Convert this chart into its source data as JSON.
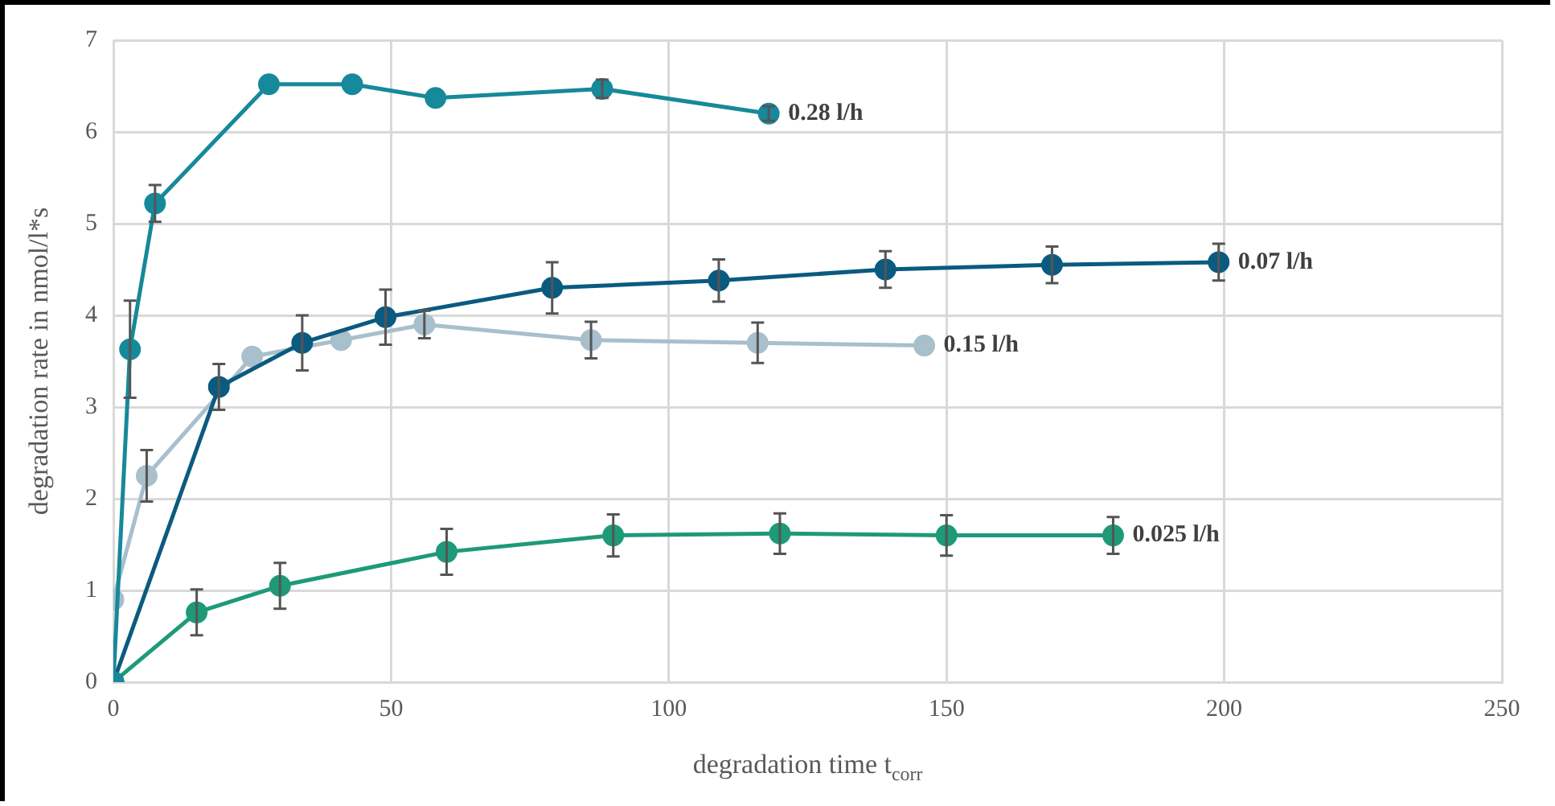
{
  "chart_data": {
    "type": "line",
    "xlabel": "degradation time t$_{corr}$",
    "ylabel": "degradation rate in nmol/l*s",
    "xlim": [
      0,
      250
    ],
    "xticks": [
      0,
      50,
      100,
      150,
      200,
      250
    ],
    "ylim": [
      0,
      7
    ],
    "yticks": [
      0,
      1,
      2,
      3,
      4,
      5,
      6,
      7
    ],
    "grid": true,
    "legend": false,
    "marker": "circle",
    "line_style": "solid",
    "series": [
      {
        "name": "0.28 l/h",
        "color": "#16899a",
        "x": [
          0,
          3,
          7.5,
          28,
          43,
          58,
          88,
          118
        ],
        "values": [
          0,
          3.63,
          5.22,
          6.52,
          6.52,
          6.37,
          6.47,
          6.2
        ],
        "errors": [
          null,
          0.53,
          0.2,
          null,
          null,
          null,
          0.1,
          0.08
        ]
      },
      {
        "name": "0.07 l/h",
        "color": "#0b5a80",
        "x": [
          0,
          19,
          34,
          49,
          79,
          109,
          139,
          169,
          199
        ],
        "values": [
          0,
          3.22,
          3.7,
          3.98,
          4.3,
          4.38,
          4.5,
          4.55,
          4.58
        ],
        "errors": [
          null,
          0.25,
          0.3,
          0.3,
          0.28,
          0.23,
          0.2,
          0.2,
          0.2
        ]
      },
      {
        "name": "0.15 l/h",
        "color": "#a8bfcc",
        "x": [
          0,
          6,
          25,
          41,
          56,
          86,
          116,
          146
        ],
        "values": [
          0.9,
          2.25,
          3.55,
          3.73,
          3.9,
          3.73,
          3.7,
          3.67
        ],
        "errors": [
          null,
          0.28,
          null,
          null,
          0.15,
          0.2,
          0.22,
          null
        ]
      },
      {
        "name": "0.025 l/h",
        "color": "#1e9a78",
        "x": [
          0,
          15,
          30,
          60,
          90,
          120,
          150,
          180
        ],
        "values": [
          0,
          0.76,
          1.05,
          1.42,
          1.6,
          1.62,
          1.6,
          1.6
        ],
        "errors": [
          null,
          0.25,
          0.25,
          0.25,
          0.23,
          0.22,
          0.22,
          0.2
        ]
      }
    ]
  }
}
